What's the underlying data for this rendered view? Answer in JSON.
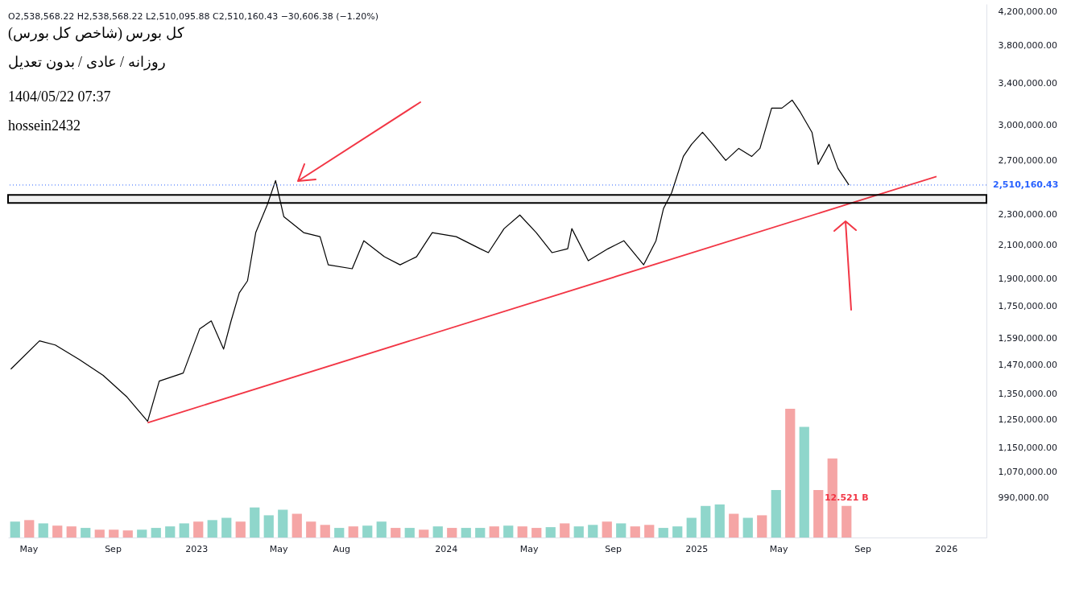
{
  "chart_data": [
    {
      "type": "line",
      "annotations": [
        "O2,538,568.22 H2,538,568.22 L2,510,095.88 C2,510,160.43 −30,606.38 (−1.20%)",
        "کل بورس (شاخص کل بورس)",
        "روزانه / عادی / بدون تعدیل",
        "1404/05/22 07:37",
        "hossein2432"
      ],
      "x": [
        "2022-04-05",
        "2022-05-17",
        "2022-06-09",
        "2022-07-14",
        "2022-08-18",
        "2022-09-22",
        "2022-10-22",
        "2022-11-08",
        "2022-12-13",
        "2023-01-06",
        "2023-01-23",
        "2023-02-10",
        "2023-02-21",
        "2023-03-05",
        "2023-03-17",
        "2023-03-29",
        "2023-04-15",
        "2023-04-27",
        "2023-05-09",
        "2023-06-07",
        "2023-07-01",
        "2023-07-13",
        "2023-08-17",
        "2023-09-03",
        "2023-10-03",
        "2023-10-26",
        "2023-11-19",
        "2023-12-12",
        "2024-01-16",
        "2024-02-20",
        "2024-03-03",
        "2024-03-26",
        "2024-04-18",
        "2024-05-12",
        "2024-06-04",
        "2024-06-27",
        "2024-07-03",
        "2024-07-27",
        "2024-08-25",
        "2024-09-17",
        "2024-10-16",
        "2024-11-03",
        "2024-11-14",
        "2024-11-26",
        "2024-12-13",
        "2024-12-25",
        "2025-01-10",
        "2025-01-25",
        "2025-02-13",
        "2025-03-04",
        "2025-03-23",
        "2025-04-04",
        "2025-04-21",
        "2025-05-06",
        "2025-05-21",
        "2025-06-02",
        "2025-06-19",
        "2025-06-28",
        "2025-07-14",
        "2025-07-27",
        "2025-08-12"
      ],
      "series": [
        {
          "color": "#000000",
          "values": [
            1452000,
            1579000,
            1560000,
            1494000,
            1425000,
            1336000,
            1243000,
            1401000,
            1435000,
            1636000,
            1676000,
            1541000,
            1676000,
            1822000,
            1888000,
            2179000,
            2368000,
            2544000,
            2285000,
            2179000,
            2153000,
            1980000,
            1957000,
            2127000,
            2028000,
            1980000,
            2028000,
            2179000,
            2153000,
            2077000,
            2053000,
            2205000,
            2296000,
            2179000,
            2053000,
            2077000,
            2205000,
            2004000,
            2077000,
            2127000,
            1980000,
            2127000,
            2341000,
            2455000,
            2733000,
            2833000,
            2936000,
            2833000,
            2701000,
            2799000,
            2733000,
            2799000,
            3155000,
            3155000,
            3231000,
            3117000,
            2936000,
            2669000,
            2833000,
            2637000,
            2510160.43
          ]
        },
        {
          "type": "line",
          "color": "#f23645",
          "x": [
            "2022-10-22",
            "2025-12-18"
          ],
          "values": [
            1238000,
            2575000
          ]
        }
      ],
      "xlim": [
        "2022-04-01",
        "2026-03-01"
      ],
      "xticks": [
        {
          "value": "2022-05-01",
          "label": "May"
        },
        {
          "value": "2022-09-01",
          "label": "Sep"
        },
        {
          "value": "2023-01-01",
          "label": "2023"
        },
        {
          "value": "2023-05-01",
          "label": "May"
        },
        {
          "value": "2023-08-01",
          "label": "Aug"
        },
        {
          "value": "2024-01-01",
          "label": "2024"
        },
        {
          "value": "2024-05-01",
          "label": "May"
        },
        {
          "value": "2024-09-01",
          "label": "Sep"
        },
        {
          "value": "2025-01-01",
          "label": "2025"
        },
        {
          "value": "2025-05-01",
          "label": "May"
        },
        {
          "value": "2025-09-01",
          "label": "Sep"
        },
        {
          "value": "2026-01-01",
          "label": "2026"
        }
      ],
      "ylim": [
        880000,
        4300000
      ],
      "yticks": [
        {
          "value": 4200000,
          "label": "4,200,000.00"
        },
        {
          "value": 3800000,
          "label": "3,800,000.00"
        },
        {
          "value": 3400000,
          "label": "3,400,000.00"
        },
        {
          "value": 3000000,
          "label": "3,000,000.00"
        },
        {
          "value": 2700000,
          "label": "2,700,000.00"
        },
        {
          "value": 2300000,
          "label": "2,300,000.00"
        },
        {
          "value": 2100000,
          "label": "2,100,000.00"
        },
        {
          "value": 1900000,
          "label": "1,900,000.00"
        },
        {
          "value": 1750000,
          "label": "1,750,000.00"
        },
        {
          "value": 1590000,
          "label": "1,590,000.00"
        },
        {
          "value": 1470000,
          "label": "1,470,000.00"
        },
        {
          "value": 1350000,
          "label": "1,350,000.00"
        },
        {
          "value": 1250000,
          "label": "1,250,000.00"
        },
        {
          "value": 1150000,
          "label": "1,150,000.00"
        },
        {
          "value": 1070000,
          "label": "1,070,000.00"
        },
        {
          "value": 990000,
          "label": "990,000.00"
        }
      ],
      "log": true,
      "ref_lines": [
        {
          "axis": "y",
          "value": 2510160.43,
          "label": "2,510,160.43",
          "color": "#2962ff",
          "line_style": "dotted"
        }
      ],
      "bands": [
        {
          "axis": "y",
          "from": 2380000,
          "to": 2437000,
          "color": "#000000"
        }
      ]
    },
    {
      "type": "bar",
      "categories": [
        null,
        null,
        null,
        null,
        null,
        null,
        null,
        null,
        null,
        null,
        null,
        null,
        null,
        null,
        null,
        null,
        null,
        null,
        null,
        null,
        null,
        null,
        null,
        null,
        null,
        null,
        null,
        null,
        null,
        null,
        null,
        null,
        null,
        null,
        null,
        null,
        null,
        null,
        null,
        null,
        null,
        null,
        null,
        null,
        null,
        null,
        null,
        null,
        null,
        null,
        null,
        null,
        null,
        null,
        null,
        null,
        null,
        null,
        null,
        null
      ],
      "values": [
        6.3,
        6.9,
        5.6,
        4.7,
        4.4,
        3.8,
        3.1,
        3.1,
        2.8,
        3.1,
        3.8,
        4.4,
        5.6,
        6.3,
        6.9,
        7.8,
        6.3,
        11.9,
        8.8,
        11,
        9.4,
        6.3,
        5,
        3.8,
        4.4,
        4.7,
        6.3,
        3.8,
        3.8,
        3.1,
        4.4,
        3.8,
        3.8,
        3.8,
        4.4,
        4.7,
        4.4,
        3.8,
        4.1,
        5.6,
        4.4,
        5,
        6.3,
        5.6,
        4.4,
        5,
        3.8,
        4.4,
        7.8,
        12.5,
        13.1,
        9.4,
        7.8,
        8.8,
        18.8,
        51,
        43.8,
        18.8,
        31.3,
        12.521
      ],
      "colors": [
        "#8fd6cb",
        "#f5a5a5",
        "#8fd6cb",
        "#f5a5a5",
        "#f5a5a5",
        "#8fd6cb",
        "#f5a5a5",
        "#f5a5a5",
        "#f5a5a5",
        "#8fd6cb",
        "#8fd6cb",
        "#8fd6cb",
        "#8fd6cb",
        "#f5a5a5",
        "#8fd6cb",
        "#8fd6cb",
        "#f5a5a5",
        "#8fd6cb",
        "#8fd6cb",
        "#8fd6cb",
        "#f5a5a5",
        "#f5a5a5",
        "#f5a5a5",
        "#8fd6cb",
        "#f5a5a5",
        "#8fd6cb",
        "#8fd6cb",
        "#f5a5a5",
        "#8fd6cb",
        "#f5a5a5",
        "#8fd6cb",
        "#f5a5a5",
        "#8fd6cb",
        "#8fd6cb",
        "#f5a5a5",
        "#8fd6cb",
        "#f5a5a5",
        "#f5a5a5",
        "#8fd6cb",
        "#f5a5a5",
        "#8fd6cb",
        "#8fd6cb",
        "#f5a5a5",
        "#8fd6cb",
        "#f5a5a5",
        "#f5a5a5",
        "#8fd6cb",
        "#8fd6cb",
        "#8fd6cb",
        "#8fd6cb",
        "#8fd6cb",
        "#f5a5a5",
        "#8fd6cb",
        "#f5a5a5",
        "#8fd6cb",
        "#f5a5a5",
        "#8fd6cb",
        "#f5a5a5",
        "#f5a5a5",
        "#f5a5a5"
      ],
      "value_labels": [
        null,
        null,
        null,
        null,
        null,
        null,
        null,
        null,
        null,
        null,
        null,
        null,
        null,
        null,
        null,
        null,
        null,
        null,
        null,
        null,
        null,
        null,
        null,
        null,
        null,
        null,
        null,
        null,
        null,
        null,
        null,
        null,
        null,
        null,
        null,
        null,
        null,
        null,
        null,
        null,
        null,
        null,
        null,
        null,
        null,
        null,
        null,
        null,
        null,
        null,
        null,
        null,
        null,
        null,
        null,
        null,
        null,
        null,
        null,
        "12.521 B"
      ]
    }
  ]
}
